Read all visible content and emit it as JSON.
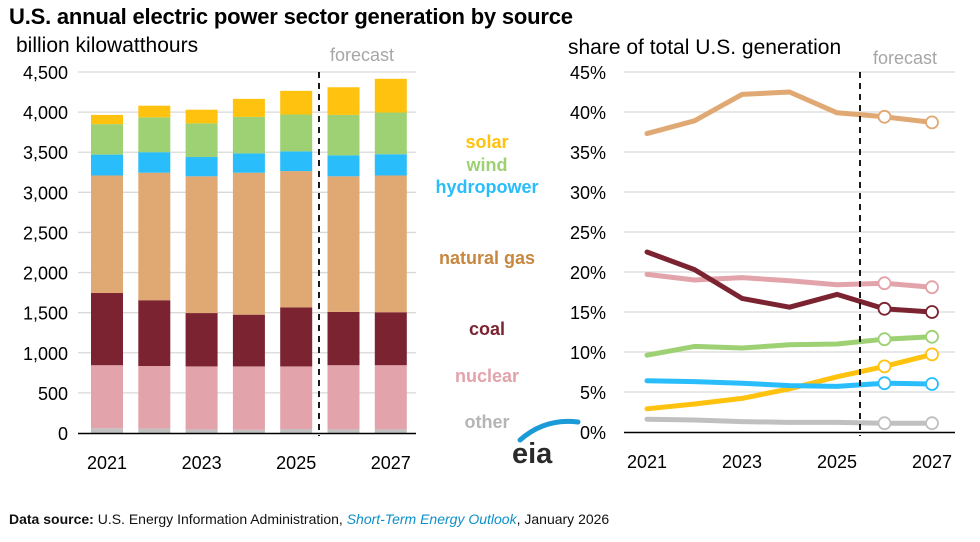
{
  "title": "U.S. annual electric power sector generation by source",
  "left_subtitle": "billion kilowatthours",
  "right_subtitle": "share of total U.S. generation",
  "forecast_label": "forecast",
  "legend": [
    {
      "key": "solar",
      "label": "solar",
      "color": "#ffc20e"
    },
    {
      "key": "wind",
      "label": "wind",
      "color": "#9dd174"
    },
    {
      "key": "hydropower",
      "label": "hydropower",
      "color": "#29bdfc"
    },
    {
      "key": "natural_gas",
      "label": "natural gas",
      "color": "#c8873f"
    },
    {
      "key": "coal",
      "label": "coal",
      "color": "#7b2330"
    },
    {
      "key": "nuclear",
      "label": "nuclear",
      "color": "#e2a3aa"
    },
    {
      "key": "other",
      "label": "other",
      "color": "#b5b5b5"
    }
  ],
  "logo": "eia",
  "source": {
    "prefix": "Data source:",
    "org": " U.S. Energy Information Administration, ",
    "publication": "Short-Term Energy Outlook",
    "date": ", January 2026"
  },
  "chart_data": [
    {
      "type": "bar",
      "stacked": true,
      "title": "U.S. annual electric power sector generation by source",
      "ylabel": "billion kilowatthours",
      "categories": [
        "2021",
        "2022",
        "2023",
        "2024",
        "2025",
        "2026",
        "2027"
      ],
      "x_tick_labels": [
        "2021",
        "2023",
        "2025",
        "2027"
      ],
      "ylim": [
        0,
        4500
      ],
      "y_ticks": [
        "0",
        "500",
        "1,000",
        "1,500",
        "2,000",
        "2,500",
        "3,000",
        "3,500",
        "4,000",
        "4,500"
      ],
      "grid": true,
      "forecast_start": "2026",
      "series": [
        {
          "name": "other",
          "color": "#c0c0c0",
          "values": [
            60,
            55,
            45,
            40,
            50,
            45,
            45
          ]
        },
        {
          "name": "nuclear",
          "color": "#e2a3aa",
          "values": [
            785,
            780,
            785,
            790,
            780,
            800,
            800
          ]
        },
        {
          "name": "coal",
          "color": "#7b2330",
          "values": [
            900,
            820,
            665,
            645,
            735,
            665,
            660
          ]
        },
        {
          "name": "natural gas",
          "color": "#e0a872",
          "values": [
            1465,
            1590,
            1705,
            1770,
            1700,
            1690,
            1705
          ]
        },
        {
          "name": "hydropower",
          "color": "#29bdfc",
          "values": [
            260,
            255,
            240,
            240,
            245,
            260,
            265
          ]
        },
        {
          "name": "wind",
          "color": "#9dd174",
          "values": [
            380,
            435,
            420,
            455,
            460,
            505,
            520
          ]
        },
        {
          "name": "solar",
          "color": "#ffc20e",
          "values": [
            115,
            145,
            170,
            225,
            295,
            345,
            420
          ]
        }
      ]
    },
    {
      "type": "line",
      "title": "share of total U.S. generation",
      "x": [
        2021,
        2022,
        2023,
        2024,
        2025,
        2026,
        2027
      ],
      "x_tick_labels": [
        "2021",
        "2023",
        "2025",
        "2027"
      ],
      "ylim": [
        0,
        45
      ],
      "y_ticks": [
        "0%",
        "5%",
        "10%",
        "15%",
        "20%",
        "25%",
        "30%",
        "35%",
        "40%",
        "45%"
      ],
      "grid": true,
      "forecast_start": 2026,
      "forecast_marker": "open-circle",
      "series": [
        {
          "name": "natural gas",
          "color": "#e0a872",
          "values": [
            37.3,
            38.9,
            42.2,
            42.5,
            39.9,
            39.4,
            38.7
          ]
        },
        {
          "name": "nuclear",
          "color": "#e2a3aa",
          "values": [
            19.7,
            19.0,
            19.3,
            18.9,
            18.4,
            18.6,
            18.1
          ]
        },
        {
          "name": "coal",
          "color": "#7b2330",
          "values": [
            22.5,
            20.3,
            16.7,
            15.6,
            17.2,
            15.4,
            15.0
          ]
        },
        {
          "name": "wind",
          "color": "#9dd174",
          "values": [
            9.6,
            10.7,
            10.5,
            10.9,
            11.0,
            11.6,
            11.9
          ]
        },
        {
          "name": "solar",
          "color": "#ffc20e",
          "values": [
            2.9,
            3.5,
            4.2,
            5.4,
            6.9,
            8.2,
            9.7
          ]
        },
        {
          "name": "hydropower",
          "color": "#29bdfc",
          "values": [
            6.4,
            6.3,
            6.1,
            5.8,
            5.7,
            6.1,
            6.0
          ]
        },
        {
          "name": "other",
          "color": "#c0c0c0",
          "values": [
            1.6,
            1.5,
            1.3,
            1.2,
            1.2,
            1.1,
            1.1
          ]
        }
      ]
    }
  ]
}
